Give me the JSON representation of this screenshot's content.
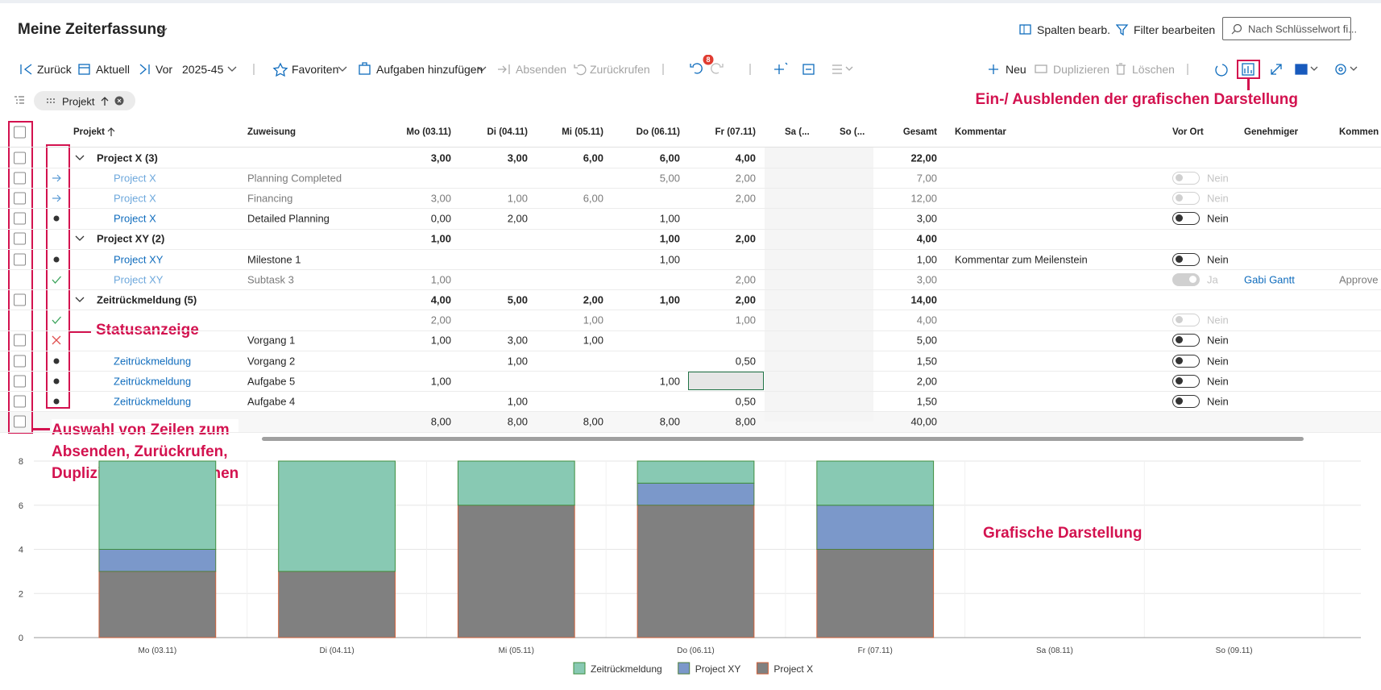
{
  "header": {
    "title": "Meine Zeiterfassung",
    "columns_button": "Spalten bearb.",
    "filter_button": "Filter bearbeiten",
    "search_placeholder": "Nach Schlüsselwort fi..."
  },
  "toolbar": {
    "back": "Zurück",
    "current": "Aktuell",
    "next": "Vor",
    "period": "2025-45",
    "favorites": "Favoriten",
    "add_tasks": "Aufgaben hinzufügen",
    "submit": "Absenden",
    "recall": "Zurückrufen",
    "badge": "8",
    "new": "Neu",
    "duplicate": "Duplizieren",
    "delete": "Löschen"
  },
  "filter": {
    "chip": "Projekt"
  },
  "table": {
    "columns": [
      "Projekt",
      "Zuweisung",
      "Mo (03.11)",
      "Di (04.11)",
      "Mi (05.11)",
      "Do (06.11)",
      "Fr (07.11)",
      "Sa (...",
      "So (...",
      "Gesamt",
      "Kommentar",
      "Vor Ort",
      "Genehmiger",
      "Kommen"
    ],
    "rows": [
      {
        "group": true,
        "checkbox": true,
        "cells": [
          "Project X (3)",
          null,
          "3,00",
          "3,00",
          "6,00",
          "6,00",
          "4,00",
          null,
          null,
          "22,00",
          null,
          null,
          null,
          null
        ]
      },
      {
        "status": "arrow",
        "muted": true,
        "checkbox": true,
        "toggle_disabled": true,
        "cells": [
          "Project X",
          "Planning Completed",
          null,
          null,
          null,
          "5,00",
          "2,00",
          null,
          null,
          "7,00",
          null,
          "Nein",
          null,
          null
        ]
      },
      {
        "status": "arrow",
        "muted": true,
        "checkbox": true,
        "toggle_disabled": true,
        "cells": [
          "Project X",
          "Financing",
          "3,00",
          "1,00",
          "6,00",
          null,
          "2,00",
          null,
          null,
          "12,00",
          null,
          "Nein",
          null,
          null
        ]
      },
      {
        "status": "dot",
        "checkbox": true,
        "cells": [
          "Project X",
          "Detailed Planning",
          "0,00",
          "2,00",
          null,
          "1,00",
          null,
          null,
          null,
          "3,00",
          null,
          "Nein",
          null,
          null
        ]
      },
      {
        "group": true,
        "checkbox": true,
        "cells": [
          "Project XY (2)",
          null,
          "1,00",
          null,
          null,
          "1,00",
          "2,00",
          null,
          null,
          "4,00",
          null,
          null,
          null,
          null
        ]
      },
      {
        "status": "dot",
        "checkbox": true,
        "cells": [
          "Project XY",
          "Milestone 1",
          null,
          null,
          null,
          "1,00",
          null,
          null,
          null,
          "1,00",
          "Kommentar zum Meilenstein",
          "Nein",
          null,
          null
        ]
      },
      {
        "status": "check",
        "muted": true,
        "checkbox": false,
        "toggle_disabled": true,
        "toggle_on": true,
        "cells": [
          "Project XY",
          "Subtask 3",
          "1,00",
          null,
          null,
          null,
          "2,00",
          null,
          null,
          "3,00",
          null,
          "Ja",
          "Gabi Gantt",
          "Approve"
        ]
      },
      {
        "group": true,
        "checkbox": true,
        "cells": [
          "Zeitrückmeldung (5)",
          null,
          "4,00",
          "5,00",
          "2,00",
          "1,00",
          "2,00",
          null,
          null,
          "14,00",
          null,
          null,
          null,
          null
        ]
      },
      {
        "status": "check",
        "muted": true,
        "checkbox": false,
        "toggle_disabled": true,
        "cells": [
          null,
          null,
          "2,00",
          null,
          "1,00",
          null,
          "1,00",
          null,
          null,
          "4,00",
          null,
          "Nein",
          null,
          null
        ]
      },
      {
        "status": "cross",
        "checkbox": true,
        "cells": [
          null,
          "Vorgang 1",
          "1,00",
          "3,00",
          "1,00",
          null,
          null,
          null,
          null,
          "5,00",
          null,
          "Nein",
          null,
          null
        ]
      },
      {
        "status": "dot",
        "checkbox": true,
        "cells": [
          "Zeitrückmeldung",
          "Vorgang 2",
          null,
          "1,00",
          null,
          null,
          "0,50",
          null,
          null,
          "1,50",
          null,
          "Nein",
          null,
          null
        ]
      },
      {
        "status": "dot",
        "checkbox": true,
        "cells": [
          "Zeitrückmeldung",
          "Aufgabe 5",
          "1,00",
          null,
          null,
          "1,00",
          null,
          null,
          null,
          "2,00",
          null,
          "Nein",
          null,
          null
        ]
      },
      {
        "status": "dot",
        "checkbox": true,
        "cells": [
          "Zeitrückmeldung",
          "Aufgabe 4",
          null,
          "1,00",
          null,
          null,
          "0,50",
          null,
          null,
          "1,50",
          null,
          "Nein",
          null,
          null
        ]
      },
      {
        "total": true,
        "checkbox": true,
        "cells": [
          null,
          null,
          "8,00",
          "8,00",
          "8,00",
          "8,00",
          "8,00",
          null,
          null,
          "40,00",
          null,
          null,
          null,
          null
        ]
      }
    ]
  },
  "annotations": {
    "chart_toggle": "Ein-/ Ausblenden der grafischen Darstellung",
    "status": "Statusanzeige",
    "selection": [
      "Auswahl von Zeilen zum",
      "Absenden, Zurückrufen,",
      "Duplizieren oder Löschen"
    ],
    "chart": "Grafische Darstellung"
  },
  "chart_data": {
    "type": "stacked_bar",
    "categories": [
      "Mo (03.11)",
      "Di (04.11)",
      "Mi (05.11)",
      "Do (06.11)",
      "Fr (07.11)",
      "Sa (08.11)",
      "So (09.11)"
    ],
    "series": [
      {
        "name": "Zeitrückmeldung",
        "color": "#88c9b3",
        "edgecolor": "#3f8f3f",
        "values": [
          4,
          5,
          2,
          1,
          2,
          null,
          null
        ]
      },
      {
        "name": "Project XY",
        "color": "#7b98ca",
        "edgecolor": "#4f7f3f",
        "values": [
          1,
          0,
          0,
          1,
          2,
          null,
          null
        ]
      },
      {
        "name": "Project X",
        "color": "#808080",
        "edgecolor": "#d0603a",
        "values": [
          3,
          3,
          6,
          6,
          4,
          null,
          null
        ]
      }
    ],
    "ylim": [
      0,
      8
    ],
    "yticks": [
      0,
      2,
      4,
      6,
      8
    ],
    "grid": true
  }
}
